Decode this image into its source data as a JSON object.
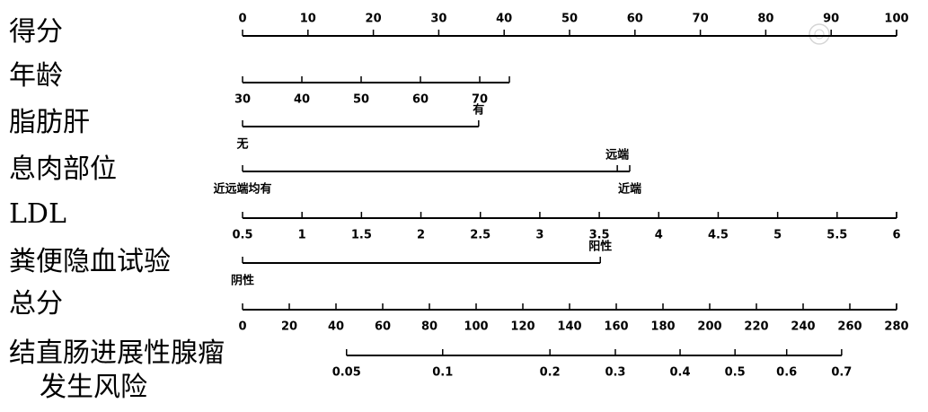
{
  "chart_data": {
    "type": "nomogram",
    "color": "#000000",
    "rows": [
      {
        "label": "得分",
        "kind": "continuous",
        "xlim": [
          0,
          100
        ],
        "points": [
          0,
          100
        ],
        "ticks": [
          0,
          10,
          20,
          30,
          40,
          50,
          60,
          70,
          80,
          90,
          100
        ],
        "tick_side": "above"
      },
      {
        "label": "年龄",
        "kind": "continuous",
        "xlim": [
          30,
          75
        ],
        "points": [
          0,
          40.8
        ],
        "ticks": [
          30,
          40,
          50,
          60,
          70
        ],
        "tick_side": "below"
      },
      {
        "label": "脂肪肝",
        "kind": "categorical",
        "levels": [
          {
            "label": "无",
            "points": 0,
            "side": "below"
          },
          {
            "label": "有",
            "points": 36.1,
            "side": "above"
          }
        ]
      },
      {
        "label": "息肉部位",
        "kind": "categorical",
        "levels": [
          {
            "label": "近远端均有",
            "points": 0,
            "side": "below"
          },
          {
            "label": "远端",
            "points": 57.3,
            "side": "above"
          },
          {
            "label": "近端",
            "points": 59.2,
            "side": "below"
          }
        ]
      },
      {
        "label": "LDL",
        "kind": "continuous",
        "xlim": [
          0.5,
          6
        ],
        "points": [
          0,
          100
        ],
        "ticks": [
          0.5,
          1,
          1.5,
          2,
          2.5,
          3,
          3.5,
          4,
          4.5,
          5,
          5.5,
          6
        ],
        "tick_side": "below"
      },
      {
        "label": "粪便隐血试验",
        "kind": "categorical",
        "levels": [
          {
            "label": "阴性",
            "points": 0,
            "side": "below"
          },
          {
            "label": "阳性",
            "points": 54.7,
            "side": "above"
          }
        ]
      },
      {
        "label": "总分",
        "kind": "continuous",
        "xlim": [
          0,
          280
        ],
        "points": [
          0,
          100
        ],
        "ticks": [
          0,
          20,
          40,
          60,
          80,
          100,
          120,
          140,
          160,
          180,
          200,
          220,
          240,
          260,
          280
        ],
        "tick_side": "below"
      },
      {
        "label": [
          "结直肠进展性腺瘤",
          "发生风险"
        ],
        "kind": "risk",
        "ticks": [
          0.05,
          0.1,
          0.2,
          0.3,
          0.4,
          0.5,
          0.6,
          0.7
        ],
        "tick_points": [
          15.9,
          30.6,
          47.0,
          57.0,
          66.9,
          75.3,
          83.2,
          91.6
        ],
        "tick_side": "below"
      }
    ]
  }
}
